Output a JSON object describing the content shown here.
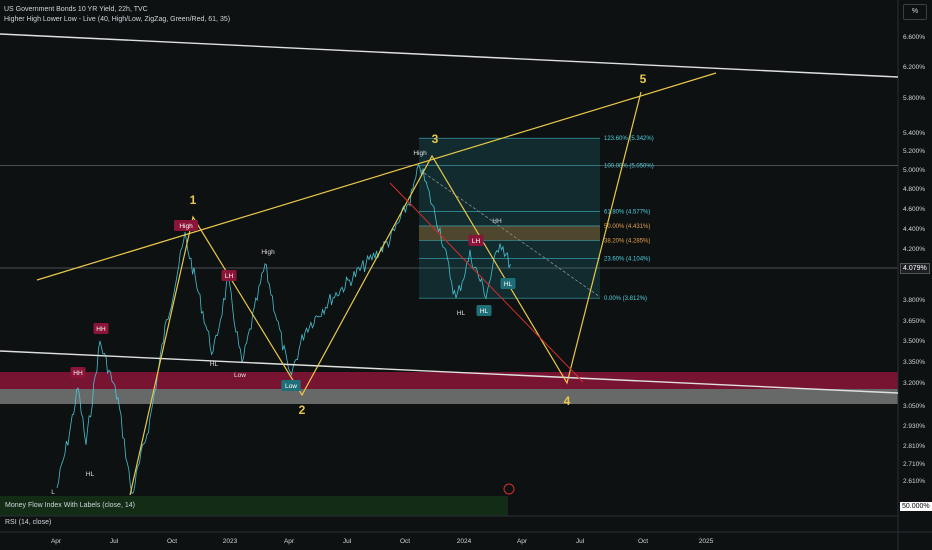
{
  "header": {
    "title": "US Government Bonds 10 YR Yield, 22h, TVC",
    "indicator": "Higher High Lower Low - Live (40, High/Low, ZigZag, Green/Red, 61, 35)"
  },
  "axis_unit_button": "%",
  "current_price_label": "4.079%",
  "mfi_label": "Money Flow Index With Labels (close, 14)",
  "mfi_value": "50.000%",
  "rsi_label": "RSI (14, close)",
  "chart_data": {
    "type": "line",
    "title": "US Government Bonds 10 YR Yield, 22h, TVC",
    "y_ticks": [
      "6.600%",
      "6.200%",
      "5.800%",
      "5.400%",
      "5.200%",
      "5.000%",
      "4.800%",
      "4.600%",
      "4.400%",
      "4.200%",
      "4.000%",
      "3.800%",
      "3.650%",
      "3.500%",
      "3.350%",
      "3.200%",
      "3.050%",
      "2.930%",
      "2.810%",
      "2.710%",
      "2.610%"
    ],
    "x_ticks": [
      "Apr",
      "Jul",
      "Oct",
      "2023",
      "Apr",
      "Jul",
      "Oct",
      "2024",
      "Apr",
      "Jul",
      "Oct",
      "2025"
    ],
    "fib_levels": [
      {
        "label": "123.60% (5.342%)",
        "value": 5.342
      },
      {
        "label": "100.00% (5.050%)",
        "value": 5.05
      },
      {
        "label": "61.80% (4.577%)",
        "value": 4.577
      },
      {
        "label": "50.00% (4.431%)",
        "value": 4.431
      },
      {
        "label": "38.20% (4.285%)",
        "value": 4.285
      },
      {
        "label": "23.60% (4.104%)",
        "value": 4.104
      },
      {
        "label": "0.00% (3.812%)",
        "value": 3.812
      }
    ],
    "wave_labels": [
      "1",
      "2",
      "3",
      "4",
      "5"
    ],
    "swing_labels": [
      "HH",
      "HH",
      "HL",
      "L",
      "High",
      "LH",
      "HL",
      "High",
      "Low",
      "Low",
      "HL",
      "High",
      "LH",
      "HH",
      "HL",
      "HL",
      "HL"
    ],
    "colors": {
      "background": "#0e1111",
      "price": "#4dd0e1",
      "wave": "#e8c84a",
      "channel": "#e0e0e0",
      "supply_zone": "#8a1538",
      "demand_zone": "#b0b0b0",
      "fib_box": "#1f8a94",
      "fib_orange": "#c07a2c",
      "red_line": "#d32f2f",
      "mfi_band": "#1b5e20"
    }
  }
}
